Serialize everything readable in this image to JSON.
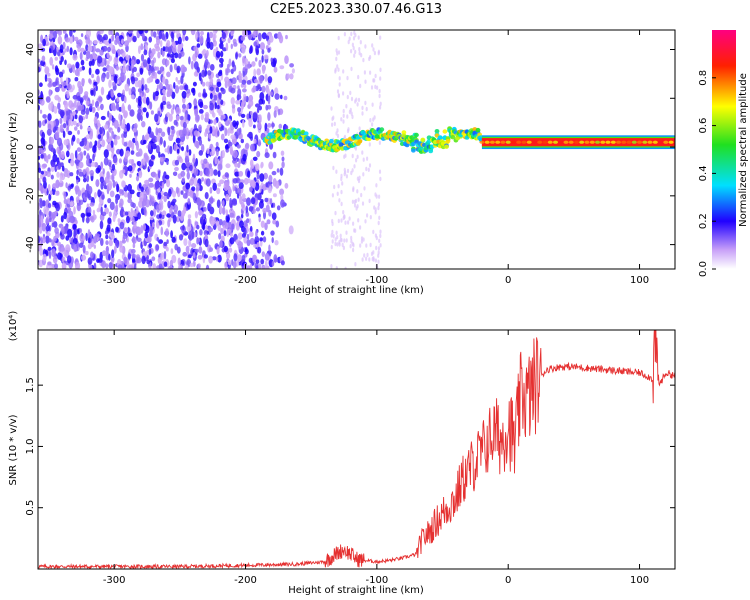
{
  "figure_title": "C2E5.2023.330.07.46.G13",
  "chart_data": [
    {
      "type": "heatmap",
      "title": "C2E5.2023.330.07.46.G13",
      "xlabel": "Height of straight line (km)",
      "ylabel": "Frequency (Hz)",
      "xlim": [
        -358,
        127
      ],
      "ylim": [
        -50,
        48
      ],
      "x_ticks": [
        -300,
        -200,
        -100,
        0,
        100
      ],
      "x_tick_labels": [
        "-300",
        "-200",
        "-100",
        "0",
        "100"
      ],
      "y_ticks": [
        -40,
        -20,
        0,
        20,
        40
      ],
      "y_tick_labels": [
        "-40",
        "-20",
        "0",
        "20",
        "40"
      ],
      "colorbar": {
        "label": "Normalized spectral amplitude",
        "range": [
          0.0,
          1.0
        ],
        "ticks": [
          0.0,
          0.2,
          0.4,
          0.6,
          0.8
        ],
        "tick_labels": [
          "0.0",
          "0.2",
          "0.4",
          "0.6",
          "0.8"
        ],
        "colormap": "rainbow (white-violet-blue-cyan-green-yellow-red-magenta)"
      },
      "regions": [
        {
          "x_range": [
            -358,
            -163
          ],
          "freq_range": [
            -50,
            48
          ],
          "amplitude": 0.1,
          "description": "broadband noise speckle"
        },
        {
          "x_range": [
            -135,
            -97
          ],
          "freq_range": [
            -50,
            48
          ],
          "amplitude": 0.03,
          "description": "faint noise streaks"
        },
        {
          "x_range": [
            -185,
            -20
          ],
          "freq_range": [
            -5,
            10
          ],
          "amplitude": 0.5,
          "description": "wavy tracked signal"
        },
        {
          "x_range": [
            -20,
            127
          ],
          "freq_range": [
            0,
            4
          ],
          "amplitude": 0.95,
          "description": "strong narrow tone near 1-2 Hz"
        }
      ],
      "grid": false,
      "legend": "colorbar right"
    },
    {
      "type": "line",
      "xlabel": "Height of straight line (km)",
      "ylabel": "SNR (10 * v/v)",
      "y_multiplier": "(x10⁴)",
      "xlim": [
        -358,
        127
      ],
      "ylim": [
        0,
        1.95
      ],
      "x_ticks": [
        -300,
        -200,
        -100,
        0,
        100
      ],
      "x_tick_labels": [
        "-300",
        "-200",
        "-100",
        "0",
        "100"
      ],
      "y_ticks": [
        0.5,
        1.0,
        1.5
      ],
      "y_tick_labels": [
        "0.5",
        "1.0",
        "1.5"
      ],
      "series": [
        {
          "color": "#e53030",
          "x": [
            -358,
            -300,
            -250,
            -200,
            -160,
            -140,
            -130,
            -125,
            -120,
            -115,
            -110,
            -100,
            -90,
            -80,
            -70,
            -65,
            -60,
            -55,
            -50,
            -45,
            -40,
            -35,
            -30,
            -25,
            -20,
            -15,
            -10,
            -5,
            0,
            5,
            10,
            15,
            20,
            25,
            30,
            40,
            50,
            60,
            70,
            80,
            90,
            100,
            105,
            110,
            112,
            115,
            120,
            127
          ],
          "y": [
            0.02,
            0.02,
            0.02,
            0.03,
            0.04,
            0.06,
            0.13,
            0.16,
            0.12,
            0.08,
            0.07,
            0.06,
            0.07,
            0.09,
            0.12,
            0.25,
            0.3,
            0.38,
            0.45,
            0.52,
            0.58,
            0.72,
            0.8,
            0.88,
            0.95,
            1.05,
            1.12,
            1.05,
            1.2,
            1.0,
            1.45,
            1.38,
            1.5,
            1.58,
            1.63,
            1.65,
            1.65,
            1.64,
            1.63,
            1.62,
            1.61,
            1.6,
            1.58,
            1.55,
            1.9,
            1.5,
            1.6,
            1.58
          ]
        }
      ],
      "grid": false
    }
  ]
}
